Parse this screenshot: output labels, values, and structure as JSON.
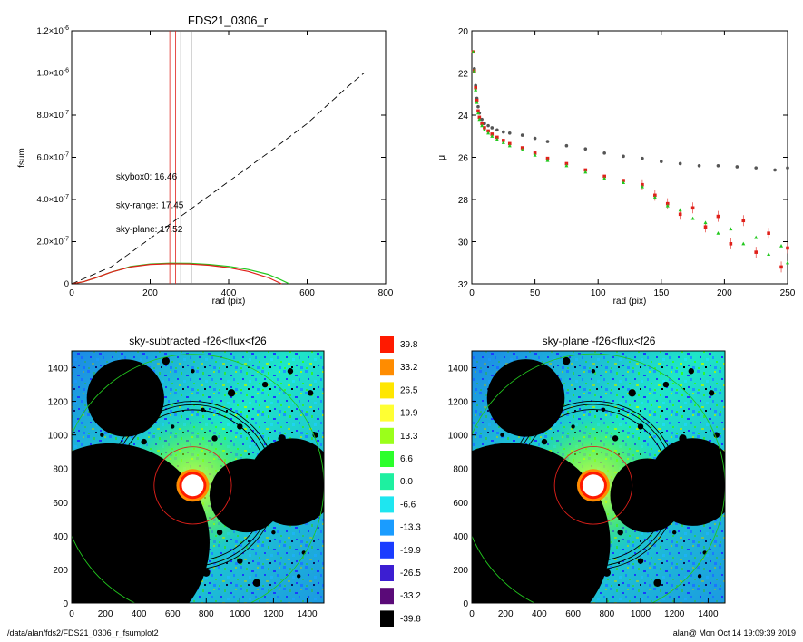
{
  "footer": {
    "path": "/data/alan/fds2/FDS21_0306_r_fsumplot2",
    "stamp": "alan@  Mon Oct 14 19:09:39 2019"
  },
  "chart_data": [
    {
      "type": "line",
      "title": "FDS21_0306_r",
      "xlabel": "rad (pix)",
      "ylabel": "fsum",
      "xlim": [
        0,
        800
      ],
      "ylim": [
        0,
        1.2e-06
      ],
      "x_ticks": [
        "0",
        "200",
        "400",
        "600",
        "800"
      ],
      "y_ticks": [
        {
          "v": 0,
          "mant": "0",
          "exp": ""
        },
        {
          "v": 2e-07,
          "mant": "2.0×10",
          "exp": "-7"
        },
        {
          "v": 4e-07,
          "mant": "4.0×10",
          "exp": "-7"
        },
        {
          "v": 6e-07,
          "mant": "6.0×10",
          "exp": "-7"
        },
        {
          "v": 8e-07,
          "mant": "8.0×10",
          "exp": "-7"
        },
        {
          "v": 1e-06,
          "mant": "1.0×10",
          "exp": "-6"
        },
        {
          "v": 1.2e-06,
          "mant": "1.2×10",
          "exp": "-6"
        }
      ],
      "vlines": [
        {
          "x": 250,
          "color": "#e0201a"
        },
        {
          "x": 265,
          "color": "#e0201a"
        },
        {
          "x": 278,
          "color": "#777777"
        },
        {
          "x": 305,
          "color": "#777777"
        }
      ],
      "annotations": [
        {
          "text": "skybox0: 16.46",
          "color": "#000000",
          "x": 150,
          "y": 4.95e-07
        },
        {
          "text": "sky-range: 17.45",
          "color": "#e0201a",
          "x": 150,
          "y": 3.6e-07
        },
        {
          "text": "sky-plane: 17.52",
          "color": "#22c81e",
          "x": 150,
          "y": 2.45e-07
        }
      ],
      "series": [
        {
          "color": "#000000",
          "dashed": true,
          "x": [
            0,
            100,
            200,
            300,
            400,
            500,
            600,
            700,
            745
          ],
          "y": [
            0,
            8e-08,
            2.15e-07,
            3.5e-07,
            4.85e-07,
            6.2e-07,
            7.6e-07,
            9.3e-07,
            1e-06
          ]
        },
        {
          "color": "#22c81e",
          "x": [
            0,
            30,
            60,
            100,
            150,
            200,
            250,
            300,
            350,
            400,
            450,
            500,
            530,
            555
          ],
          "y": [
            0,
            1e-08,
            2.8e-08,
            5.5e-08,
            8.2e-08,
            9.4e-08,
            9.8e-08,
            9.7e-08,
            9.2e-08,
            8.3e-08,
            6.8e-08,
            4.5e-08,
            2.2e-08,
            0
          ]
        },
        {
          "color": "#e0201a",
          "x": [
            0,
            30,
            60,
            100,
            150,
            200,
            250,
            300,
            350,
            400,
            450,
            500,
            535
          ],
          "y": [
            0,
            1e-08,
            2.8e-08,
            5.5e-08,
            8e-08,
            9.2e-08,
            9.5e-08,
            9.4e-08,
            8.8e-08,
            7.7e-08,
            5.9e-08,
            3e-08,
            0
          ]
        }
      ]
    },
    {
      "type": "scatter",
      "title": "",
      "xlabel": "rad (pix)",
      "ylabel": "μ",
      "xlim": [
        0,
        250
      ],
      "ylim": [
        32,
        20
      ],
      "x_ticks": [
        "0",
        "50",
        "100",
        "150",
        "200",
        "250"
      ],
      "y_ticks": [
        "20",
        "22",
        "24",
        "26",
        "28",
        "30",
        "32"
      ],
      "series": [
        {
          "name": "",
          "color": "#555555",
          "marker": "circle",
          "x": [
            1,
            2,
            3,
            4,
            5,
            6,
            8,
            10,
            13,
            16,
            20,
            25,
            30,
            40,
            50,
            60,
            75,
            90,
            105,
            120,
            135,
            150,
            165,
            180,
            195,
            210,
            225,
            240,
            250
          ],
          "y": [
            21.0,
            21.8,
            22.6,
            23.2,
            23.6,
            23.9,
            24.2,
            24.4,
            24.5,
            24.6,
            24.7,
            24.8,
            24.85,
            24.95,
            25.1,
            25.25,
            25.45,
            25.6,
            25.8,
            25.95,
            26.05,
            26.2,
            26.3,
            26.4,
            26.4,
            26.45,
            26.5,
            26.6,
            26.5
          ]
        },
        {
          "name": "",
          "color": "#e0201a",
          "marker": "square",
          "x": [
            1,
            2,
            3,
            4,
            5,
            6,
            8,
            10,
            13,
            16,
            20,
            25,
            30,
            40,
            50,
            60,
            75,
            90,
            105,
            120,
            135,
            145,
            155,
            165,
            175,
            185,
            195,
            205,
            215,
            225,
            235,
            245,
            250
          ],
          "y": [
            21.0,
            21.9,
            22.7,
            23.3,
            23.8,
            24.1,
            24.4,
            24.6,
            24.75,
            24.9,
            25.05,
            25.2,
            25.35,
            25.55,
            25.8,
            26.05,
            26.3,
            26.6,
            26.9,
            27.1,
            27.3,
            27.8,
            28.2,
            28.7,
            28.4,
            29.3,
            28.8,
            30.1,
            29.0,
            30.5,
            29.6,
            31.2,
            30.3
          ]
        },
        {
          "name": "",
          "color": "#22c81e",
          "marker": "triangle",
          "x": [
            1,
            2,
            3,
            4,
            5,
            6,
            8,
            10,
            13,
            16,
            20,
            25,
            30,
            40,
            50,
            60,
            75,
            90,
            105,
            120,
            135,
            145,
            155,
            165,
            175,
            185,
            195,
            205,
            215,
            225,
            235,
            245,
            250
          ],
          "y": [
            21.0,
            21.9,
            22.8,
            23.4,
            23.9,
            24.2,
            24.5,
            24.7,
            24.85,
            25.0,
            25.15,
            25.3,
            25.45,
            25.65,
            25.9,
            26.15,
            26.4,
            26.7,
            27.0,
            27.2,
            27.4,
            27.9,
            28.3,
            28.5,
            28.9,
            29.1,
            29.6,
            29.4,
            30.1,
            29.8,
            30.6,
            30.2,
            31.0
          ]
        }
      ]
    },
    {
      "type": "heatmap",
      "title": "sky-subtracted -f26<flux<f26",
      "xlim": [
        0,
        1500
      ],
      "ylim": [
        0,
        1500
      ],
      "x_ticks": [
        "0",
        "200",
        "400",
        "600",
        "800",
        "1000",
        "1200",
        "1400"
      ],
      "y_ticks": [
        "0",
        "200",
        "400",
        "600",
        "800",
        "1000",
        "1200",
        "1400"
      ],
      "masks": [
        {
          "cx": 320,
          "cy": 1220,
          "r": 230
        },
        {
          "cx": 230,
          "cy": 360,
          "r": 590
        },
        {
          "cx": 1040,
          "cy": 640,
          "r": 220
        },
        {
          "cx": 1310,
          "cy": 720,
          "r": 260
        }
      ],
      "rings": [
        {
          "cx": 720,
          "cy": 700,
          "r": 230,
          "color": "#e0201a"
        },
        {
          "cx": 720,
          "cy": 700,
          "r": 450,
          "color": "#000000"
        },
        {
          "cx": 720,
          "cy": 700,
          "r": 480,
          "color": "#000000"
        },
        {
          "cx": 720,
          "cy": 700,
          "r": 500,
          "color": "#000000"
        },
        {
          "cx": 720,
          "cy": 700,
          "r": 780,
          "color": "#22c81e"
        }
      ]
    },
    {
      "type": "heatmap",
      "title": "sky-plane -f26<flux<f26",
      "xlim": [
        0,
        1500
      ],
      "ylim": [
        0,
        1500
      ],
      "x_ticks": [
        "0",
        "200",
        "400",
        "600",
        "800",
        "1000",
        "1200",
        "1400"
      ],
      "y_ticks": [
        "0",
        "200",
        "400",
        "600",
        "800",
        "1000",
        "1200",
        "1400"
      ],
      "masks": [
        {
          "cx": 320,
          "cy": 1220,
          "r": 230
        },
        {
          "cx": 230,
          "cy": 360,
          "r": 590
        },
        {
          "cx": 1040,
          "cy": 640,
          "r": 220
        },
        {
          "cx": 1310,
          "cy": 720,
          "r": 260
        }
      ],
      "rings": [
        {
          "cx": 720,
          "cy": 700,
          "r": 230,
          "color": "#e0201a"
        },
        {
          "cx": 720,
          "cy": 700,
          "r": 450,
          "color": "#000000"
        },
        {
          "cx": 720,
          "cy": 700,
          "r": 480,
          "color": "#000000"
        },
        {
          "cx": 720,
          "cy": 700,
          "r": 500,
          "color": "#000000"
        },
        {
          "cx": 720,
          "cy": 700,
          "r": 780,
          "color": "#22c81e"
        }
      ]
    }
  ],
  "colorbar": {
    "labels": [
      "39.8",
      "33.2",
      "26.5",
      "19.9",
      "13.3",
      "6.6",
      "0.0",
      "-6.6",
      "-13.3",
      "-19.9",
      "-26.5",
      "-33.2",
      "-39.8"
    ],
    "colors": [
      "#ff1a00",
      "#ff8c00",
      "#ffe600",
      "#ffff33",
      "#9bff1a",
      "#2cff2c",
      "#1ef0a0",
      "#1ee6f0",
      "#1a9cff",
      "#1a3cff",
      "#3c1ed2",
      "#5a0a78",
      "#000000"
    ]
  }
}
